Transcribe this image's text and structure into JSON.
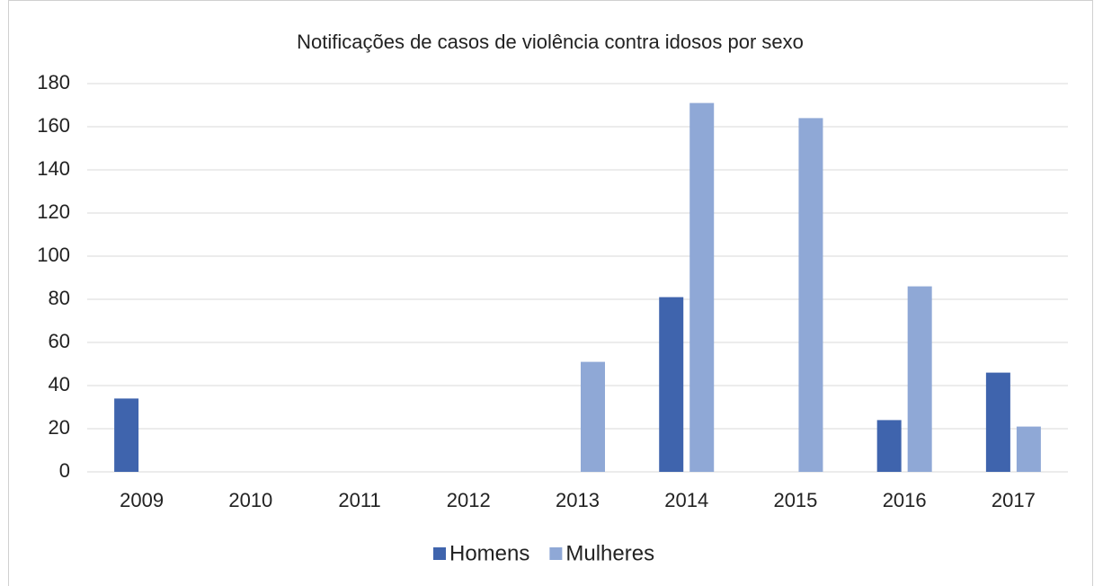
{
  "chart_data": {
    "type": "bar",
    "title": "Notificações de casos de violência  contra idosos por sexo",
    "categories": [
      "2009",
      "2010",
      "2011",
      "2012",
      "2013",
      "2014",
      "2015",
      "2016",
      "2017"
    ],
    "series": [
      {
        "name": "Homens",
        "color": "#3f64ad",
        "values": [
          34,
          0,
          0,
          0,
          0,
          81,
          0,
          24,
          46
        ]
      },
      {
        "name": "Mulheres",
        "color": "#8fa8d6",
        "values": [
          0,
          0,
          0,
          0,
          51,
          171,
          164,
          86,
          21
        ]
      }
    ],
    "ylim": [
      0,
      180
    ],
    "yticks": [
      0,
      20,
      40,
      60,
      80,
      100,
      120,
      140,
      160,
      180
    ],
    "grid": true,
    "legend": "bottom"
  }
}
